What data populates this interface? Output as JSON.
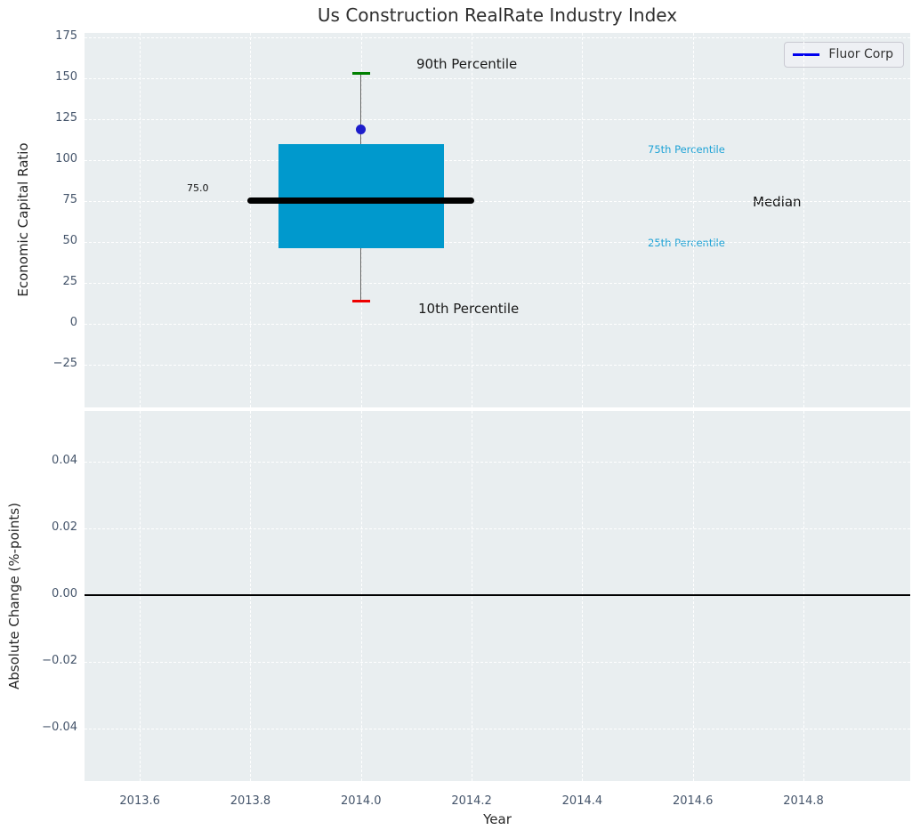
{
  "colors": {
    "axes_background": "#e9eef0",
    "grid": "#ffffff",
    "tick_label": "#44546a",
    "box_fill": "#0099cd",
    "median_line": "#000000",
    "whisker": "#606060",
    "cap_high": "#008000",
    "cap_low": "#ee0000",
    "company_point": "#1d1dcb",
    "legend_line": "#0000ee",
    "percentile_label": "#1fa3d6",
    "zero_line": "#000000"
  },
  "chart_data": [
    {
      "type": "box",
      "title": "Us Construction RealRate Industry Index",
      "xlabel": "Year",
      "ylabel": "Economic Capital Ratio",
      "xlim": [
        2013.5,
        2014.993
      ],
      "ylim": [
        -51.1,
        177.7
      ],
      "grid": true,
      "xticks": [
        {
          "v": 2013.6,
          "label": "2013.6"
        },
        {
          "v": 2013.8,
          "label": "2013.8"
        },
        {
          "v": 2014.0,
          "label": "2014.0"
        },
        {
          "v": 2014.2,
          "label": "2014.2"
        },
        {
          "v": 2014.4,
          "label": "2014.4"
        },
        {
          "v": 2014.6,
          "label": "2014.6"
        },
        {
          "v": 2014.8,
          "label": "2014.8"
        }
      ],
      "yticks": [
        {
          "v": 175,
          "label": "175"
        },
        {
          "v": 150,
          "label": "150"
        },
        {
          "v": 125,
          "label": "125"
        },
        {
          "v": 100,
          "label": "100"
        },
        {
          "v": 75,
          "label": "75"
        },
        {
          "v": 50,
          "label": "50"
        },
        {
          "v": 25,
          "label": "25"
        },
        {
          "v": 0,
          "label": "0"
        },
        {
          "v": -25,
          "label": "−25"
        }
      ],
      "legend": {
        "position": "upper right",
        "entries": [
          {
            "label": "Fluor Corp",
            "color": "#0000ee"
          }
        ]
      },
      "box": {
        "x": 2014.0,
        "p10": 14,
        "p25": 46,
        "median": 75.0,
        "p75": 110,
        "p90": 153,
        "box_x_span": [
          2013.85,
          2014.15
        ],
        "median_x_span": [
          2013.795,
          2014.205
        ]
      },
      "company_point": {
        "label": "Fluor Corp",
        "x": 2014.0,
        "y": 119
      },
      "annotations": [
        {
          "text": "90th Percentile",
          "color": "#1a1a1a"
        },
        {
          "text": "10th Percentile",
          "color": "#1a1a1a"
        },
        {
          "text": "75th Percentile",
          "color": "#1fa3d6"
        },
        {
          "text": "25th Percentile",
          "color": "#1fa3d6"
        },
        {
          "text": "Median",
          "color": "#111111"
        },
        {
          "text": "75.0",
          "color": "#111111"
        }
      ]
    },
    {
      "type": "line",
      "xlabel": "Year",
      "ylabel": "Absolute Change (%-points)",
      "xlim": [
        2013.5,
        2014.993
      ],
      "ylim": [
        -0.0557,
        0.0552
      ],
      "grid": true,
      "xticks": [
        {
          "v": 2013.6,
          "label": "2013.6"
        },
        {
          "v": 2013.8,
          "label": "2013.8"
        },
        {
          "v": 2014.0,
          "label": "2014.0"
        },
        {
          "v": 2014.2,
          "label": "2014.2"
        },
        {
          "v": 2014.4,
          "label": "2014.4"
        },
        {
          "v": 2014.6,
          "label": "2014.6"
        },
        {
          "v": 2014.8,
          "label": "2014.8"
        }
      ],
      "yticks": [
        {
          "v": 0.04,
          "label": "0.04"
        },
        {
          "v": 0.02,
          "label": "0.02"
        },
        {
          "v": 0.0,
          "label": "0.00"
        },
        {
          "v": -0.02,
          "label": "−0.02"
        },
        {
          "v": -0.04,
          "label": "−0.04"
        }
      ],
      "zero_line": 0.0,
      "series": []
    }
  ]
}
